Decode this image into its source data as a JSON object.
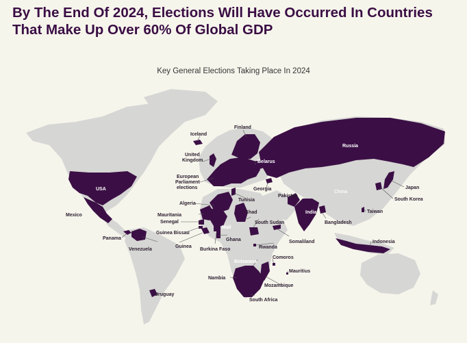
{
  "headline": {
    "line1": "By The End Of 2024, Elections Will Have Occurred In Countries",
    "line2": "That Make Up Over 60% Of Global GDP"
  },
  "subtitle": "Key General Elections Taking Place In 2024",
  "colors": {
    "background": "#f6f5ec",
    "land": "#d6d6d4",
    "election": "#3b0f45",
    "title": "#3a0d44"
  },
  "labels": {
    "iceland": "Iceland",
    "finland": "Finland",
    "russia": "Russia",
    "uk_1": "United",
    "uk_2": "Kingdom",
    "belarus": "Belarus",
    "ep_1": "European",
    "ep_2": "Parliament",
    "ep_3": "elections",
    "usa": "USA",
    "georgia": "Georgia",
    "japan": "Japan",
    "south_korea": "South Korea",
    "algeria": "Algeria",
    "tunisia": "Tunisia",
    "pakistan": "Pakistan",
    "china": "China",
    "mauritania": "Mauritania",
    "chad": "Chad",
    "india": "India",
    "taiwan": "Taiwan",
    "senegal": "Senegal",
    "mali": "Mali",
    "south_sudan": "South Sudan",
    "bangladesh": "Bangladesh",
    "mexico": "Mexico",
    "guinea_bissau": "Guinea Bissau",
    "panama": "Panama",
    "ghana": "Ghana",
    "somaliland": "Somaliland",
    "indonesia": "Indonesia",
    "guinea": "Guinea",
    "venezuela": "Venezuela",
    "burkina_faso": "Burkina Faso",
    "rwanda": "Rwanda",
    "comoros": "Comoros",
    "botswana": "Botswana",
    "mauritius": "Mauritius",
    "namibia": "Nambia",
    "mozambique": "Mozambique",
    "uruguay": "Uruguay",
    "south_africa": "South Africa"
  }
}
